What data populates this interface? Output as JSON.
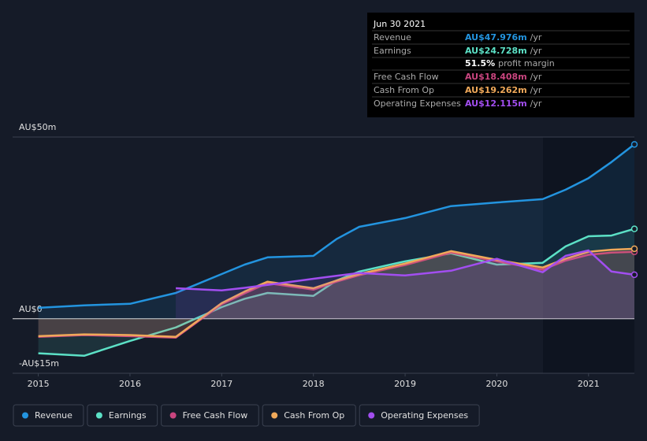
{
  "chart_data": {
    "type": "line",
    "x": [
      2015,
      2015.5,
      2016,
      2016.5,
      2017,
      2017.25,
      2017.5,
      2018,
      2018.25,
      2018.5,
      2019,
      2019.5,
      2020,
      2020.5,
      2020.75,
      2021,
      2021.25,
      2021.5
    ],
    "series": [
      {
        "name": "Revenue",
        "color": "#2394df",
        "values": [
          3.0,
          3.7,
          4.1,
          7.1,
          12.3,
          14.9,
          16.9,
          17.3,
          21.9,
          25.3,
          27.7,
          31.0,
          32.0,
          32.9,
          35.5,
          38.7,
          43.1,
          47.976
        ]
      },
      {
        "name": "Earnings",
        "color": "#5ce1c6",
        "values": [
          -9.5,
          -10.2,
          -6.1,
          -2.4,
          3.2,
          5.5,
          7.1,
          6.3,
          10.5,
          13.0,
          15.8,
          18.0,
          14.9,
          15.4,
          19.9,
          22.7,
          22.9,
          24.728
        ]
      },
      {
        "name": "Free Cash Flow",
        "color": "#c9457f",
        "values": [
          -5.0,
          -4.5,
          -4.8,
          -5.2,
          4.0,
          7.0,
          9.8,
          8.0,
          10.2,
          12.0,
          14.8,
          18.2,
          15.8,
          13.5,
          16.0,
          17.6,
          18.2,
          18.408
        ]
      },
      {
        "name": "Cash From Op",
        "color": "#f0a95a",
        "values": [
          -4.8,
          -4.3,
          -4.5,
          -5.0,
          4.3,
          7.5,
          10.2,
          8.4,
          10.5,
          12.3,
          15.2,
          18.6,
          16.2,
          14.1,
          16.5,
          18.4,
          19.0,
          19.262
        ]
      },
      {
        "name": "Operating Expenses",
        "color": "#a24ef0",
        "values": [
          null,
          null,
          null,
          8.4,
          7.8,
          8.5,
          9.3,
          11.0,
          11.8,
          12.6,
          11.9,
          13.2,
          16.5,
          12.8,
          17.3,
          18.8,
          13.0,
          12.115
        ]
      }
    ],
    "xlim": [
      2014.72,
      2021.5
    ],
    "xticks": [
      2015,
      2016,
      2017,
      2018,
      2019,
      2020,
      2021
    ],
    "ylim": [
      -15,
      50
    ],
    "yticks": [
      {
        "value": -15,
        "label": "-AU$15m"
      },
      {
        "value": 0,
        "label": "AU$0"
      },
      {
        "value": 50,
        "label": "AU$50m"
      }
    ],
    "tooltip": {
      "date": "Jun 30 2021",
      "rows": [
        {
          "label": "Revenue",
          "value": 47.976,
          "value_label": "AU$47.976m",
          "unit": "/yr",
          "color": "#2394df"
        },
        {
          "label": "Earnings",
          "value": 24.728,
          "value_label": "AU$24.728m",
          "unit": "/yr",
          "color": "#5ce1c6"
        },
        {
          "label": "Free Cash Flow",
          "value": 18.408,
          "value_label": "AU$18.408m",
          "unit": "/yr",
          "color": "#c9457f"
        },
        {
          "label": "Cash From Op",
          "value": 19.262,
          "value_label": "AU$19.262m",
          "unit": "/yr",
          "color": "#f0a95a"
        },
        {
          "label": "Operating Expenses",
          "value": 12.115,
          "value_label": "AU$12.115m",
          "unit": "/yr",
          "color": "#a24ef0"
        }
      ],
      "margin": {
        "value": 51.5,
        "value_label": "51.5%",
        "label": "profit margin"
      }
    }
  }
}
